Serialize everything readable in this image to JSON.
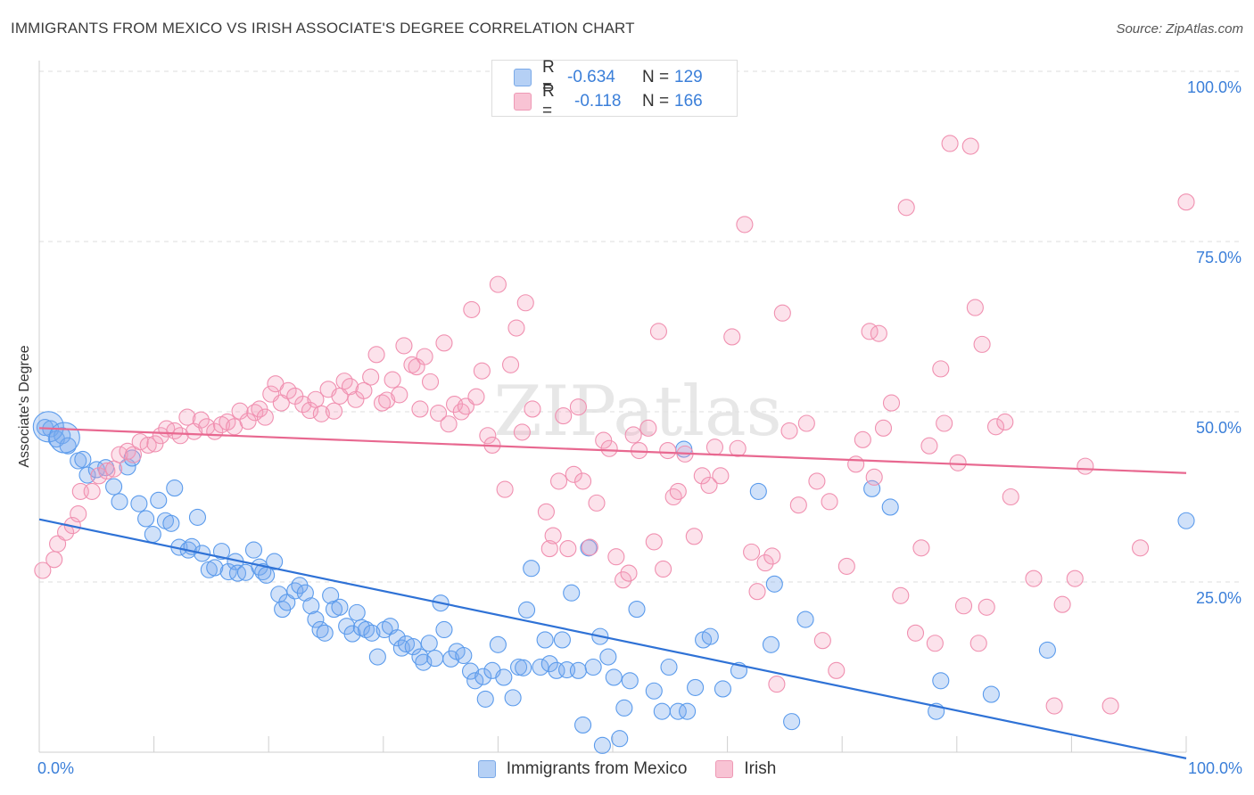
{
  "header": {
    "title": "IMMIGRANTS FROM MEXICO VS IRISH ASSOCIATE'S DEGREE CORRELATION CHART",
    "source": "Source: ZipAtlas.com"
  },
  "colors": {
    "blue": "#5b9bec",
    "blue_line": "#2f72d6",
    "pink": "#f090b0",
    "pink_line": "#e86890",
    "axis_text": "#3b7fd9"
  },
  "legend_top": {
    "rows": [
      {
        "r_label": "R =",
        "r_value": "-0.634",
        "n_label": "N =",
        "n_value": "129"
      },
      {
        "r_label": "R =",
        "r_value": "-0.118",
        "n_label": "N =",
        "n_value": "166"
      }
    ]
  },
  "legend_bottom": {
    "items": [
      "Immigrants from Mexico",
      "Irish"
    ]
  },
  "chart_data": {
    "type": "scatter",
    "ylabel": "Associate's Degree",
    "xlim": [
      0,
      100
    ],
    "ylim": [
      0,
      100
    ],
    "x_tick_labels": [
      "0.0%",
      "100.0%"
    ],
    "y_tick_labels": [
      "25.0%",
      "50.0%",
      "75.0%",
      "100.0%"
    ],
    "y_ticks": [
      25,
      50,
      75,
      100
    ],
    "grid": true,
    "watermark": "ZIPatlas",
    "series": [
      {
        "name": "Immigrants from Mexico",
        "trend": {
          "x": [
            0,
            100
          ],
          "y": [
            34.2,
            -0.9
          ]
        },
        "points": [
          [
            0.5,
            47.7
          ],
          [
            1,
            47.5
          ],
          [
            1.5,
            46
          ],
          [
            2,
            46.5
          ],
          [
            2.5,
            45
          ],
          [
            3.4,
            42.8
          ],
          [
            3.8,
            43
          ],
          [
            4.2,
            40.7
          ],
          [
            5,
            41.5
          ],
          [
            5.8,
            41.8
          ],
          [
            6.5,
            39
          ],
          [
            7,
            36.8
          ],
          [
            7.7,
            41.9
          ],
          [
            8.1,
            43.2
          ],
          [
            8.7,
            36.5
          ],
          [
            9.3,
            34.3
          ],
          [
            9.9,
            32
          ],
          [
            10.4,
            37
          ],
          [
            11,
            34
          ],
          [
            11.5,
            33.6
          ],
          [
            11.8,
            38.8
          ],
          [
            12.2,
            30.1
          ],
          [
            13,
            29.7
          ],
          [
            13.3,
            30.2
          ],
          [
            13.8,
            34.5
          ],
          [
            14.2,
            29.2
          ],
          [
            14.8,
            26.8
          ],
          [
            15.3,
            27.1
          ],
          [
            15.9,
            29.5
          ],
          [
            16.5,
            26.5
          ],
          [
            17.1,
            28
          ],
          [
            17.3,
            26.3
          ],
          [
            18,
            26.4
          ],
          [
            18.7,
            29.7
          ],
          [
            19.2,
            27.2
          ],
          [
            19.5,
            26.5
          ],
          [
            19.8,
            26
          ],
          [
            20.5,
            28
          ],
          [
            20.9,
            23.2
          ],
          [
            21.2,
            21
          ],
          [
            21.6,
            22
          ],
          [
            22.3,
            23.7
          ],
          [
            22.7,
            24.5
          ],
          [
            23.2,
            23.4
          ],
          [
            23.7,
            21.5
          ],
          [
            24.1,
            19.5
          ],
          [
            24.5,
            18
          ],
          [
            24.9,
            17.5
          ],
          [
            25.4,
            23
          ],
          [
            25.7,
            21
          ],
          [
            26.2,
            21.3
          ],
          [
            26.8,
            18.5
          ],
          [
            27.3,
            17.4
          ],
          [
            27.7,
            20.5
          ],
          [
            28.1,
            18.3
          ],
          [
            28.5,
            18
          ],
          [
            29,
            17.5
          ],
          [
            29.5,
            14
          ],
          [
            30.1,
            18
          ],
          [
            30.6,
            18.5
          ],
          [
            31.2,
            16.8
          ],
          [
            31.6,
            15.3
          ],
          [
            32,
            15.9
          ],
          [
            32.6,
            15.5
          ],
          [
            33.2,
            14
          ],
          [
            33.5,
            13.2
          ],
          [
            34,
            16
          ],
          [
            34.5,
            13.8
          ],
          [
            35,
            21.9
          ],
          [
            35.3,
            18
          ],
          [
            35.9,
            13.7
          ],
          [
            36.4,
            14.8
          ],
          [
            37,
            14.2
          ],
          [
            37.6,
            11.9
          ],
          [
            38,
            10.5
          ],
          [
            38.7,
            11.1
          ],
          [
            38.9,
            7.8
          ],
          [
            39.5,
            12
          ],
          [
            40,
            15.8
          ],
          [
            40.5,
            11
          ],
          [
            41.3,
            8
          ],
          [
            41.8,
            12.5
          ],
          [
            42.2,
            12.4
          ],
          [
            42.5,
            20.9
          ],
          [
            42.9,
            27
          ],
          [
            43.7,
            12.5
          ],
          [
            44.1,
            16.5
          ],
          [
            44.5,
            13
          ],
          [
            45.1,
            12
          ],
          [
            45.6,
            16.5
          ],
          [
            46,
            12.1
          ],
          [
            46.4,
            23.4
          ],
          [
            47,
            12
          ],
          [
            47.4,
            4
          ],
          [
            47.9,
            30
          ],
          [
            48.3,
            12.5
          ],
          [
            48.9,
            17
          ],
          [
            49.1,
            1
          ],
          [
            49.6,
            14
          ],
          [
            50.1,
            11
          ],
          [
            50.6,
            2
          ],
          [
            51,
            6.5
          ],
          [
            51.5,
            10.5
          ],
          [
            52.1,
            21
          ],
          [
            53.6,
            9
          ],
          [
            54.3,
            6
          ],
          [
            54.9,
            12.5
          ],
          [
            55.7,
            6
          ],
          [
            56.2,
            44.5
          ],
          [
            56.5,
            6
          ],
          [
            57.2,
            9.5
          ],
          [
            57.9,
            16.5
          ],
          [
            58.5,
            17
          ],
          [
            59.6,
            9.3
          ],
          [
            61,
            12
          ],
          [
            62.7,
            38.3
          ],
          [
            63.8,
            15.8
          ],
          [
            64.1,
            24.7
          ],
          [
            65.6,
            4.5
          ],
          [
            66.8,
            19.5
          ],
          [
            72.6,
            38.7
          ],
          [
            74.2,
            36
          ],
          [
            78.2,
            6
          ],
          [
            78.6,
            10.5
          ],
          [
            83,
            8.5
          ],
          [
            87.9,
            15
          ],
          [
            100,
            34
          ]
        ],
        "large_points": [
          [
            0.8,
            47.8
          ],
          [
            2.2,
            46.2
          ]
        ]
      },
      {
        "name": "Irish",
        "trend": {
          "x": [
            0,
            100
          ],
          "y": [
            47.6,
            41.0
          ]
        },
        "points": [
          [
            0.3,
            26.7
          ],
          [
            1.3,
            28.3
          ],
          [
            1.6,
            30.6
          ],
          [
            2.3,
            32.3
          ],
          [
            2.9,
            33.3
          ],
          [
            3.4,
            35
          ],
          [
            3.6,
            38.3
          ],
          [
            4.6,
            38.3
          ],
          [
            5.2,
            40.6
          ],
          [
            5.9,
            41.3
          ],
          [
            6.5,
            41.6
          ],
          [
            7,
            43.7
          ],
          [
            7.7,
            44.2
          ],
          [
            8.2,
            43.7
          ],
          [
            8.8,
            45.6
          ],
          [
            9.5,
            45.1
          ],
          [
            10.1,
            45.3
          ],
          [
            10.6,
            46.5
          ],
          [
            11.1,
            47.5
          ],
          [
            11.8,
            47.2
          ],
          [
            12.3,
            46.5
          ],
          [
            12.9,
            49.2
          ],
          [
            13.5,
            47.1
          ],
          [
            14.1,
            48.8
          ],
          [
            14.6,
            47.8
          ],
          [
            15.3,
            47.1
          ],
          [
            15.9,
            48.1
          ],
          [
            16.4,
            48.5
          ],
          [
            17,
            47.8
          ],
          [
            17.5,
            50.1
          ],
          [
            18.2,
            48.6
          ],
          [
            18.8,
            49.9
          ],
          [
            19.2,
            50.4
          ],
          [
            19.7,
            49.2
          ],
          [
            20.2,
            52.6
          ],
          [
            20.6,
            54.1
          ],
          [
            21.1,
            51.3
          ],
          [
            21.7,
            53.1
          ],
          [
            22.3,
            52.3
          ],
          [
            23,
            51.1
          ],
          [
            23.6,
            50.2
          ],
          [
            24.1,
            51.8
          ],
          [
            24.6,
            49.7
          ],
          [
            25.2,
            53.3
          ],
          [
            25.7,
            50.1
          ],
          [
            26.2,
            52.3
          ],
          [
            26.6,
            54.5
          ],
          [
            27.1,
            53.7
          ],
          [
            27.6,
            51.8
          ],
          [
            28.3,
            53.1
          ],
          [
            28.9,
            55.1
          ],
          [
            29.4,
            58.4
          ],
          [
            29.9,
            51.3
          ],
          [
            30.3,
            51.7
          ],
          [
            30.8,
            54.7
          ],
          [
            31.4,
            52.5
          ],
          [
            31.8,
            59.7
          ],
          [
            32.5,
            56.9
          ],
          [
            32.9,
            56.6
          ],
          [
            33.2,
            50.4
          ],
          [
            33.6,
            58.1
          ],
          [
            34.1,
            54.4
          ],
          [
            34.8,
            49.8
          ],
          [
            35.3,
            60.1
          ],
          [
            35.7,
            48.2
          ],
          [
            36.2,
            51.1
          ],
          [
            36.8,
            50
          ],
          [
            37.2,
            50.8
          ],
          [
            37.7,
            65
          ],
          [
            38.1,
            52.2
          ],
          [
            38.6,
            56
          ],
          [
            39.1,
            46.5
          ],
          [
            39.5,
            45.1
          ],
          [
            40,
            68.7
          ],
          [
            40.6,
            38.6
          ],
          [
            41.1,
            56.9
          ],
          [
            41.6,
            62.3
          ],
          [
            42.1,
            47
          ],
          [
            42.4,
            66
          ],
          [
            43,
            50.4
          ],
          [
            44.2,
            35.3
          ],
          [
            44.5,
            29.9
          ],
          [
            44.8,
            31.8
          ],
          [
            45.3,
            39.8
          ],
          [
            45.7,
            49.4
          ],
          [
            46.1,
            29.9
          ],
          [
            46.6,
            40.8
          ],
          [
            47,
            50.7
          ],
          [
            47.4,
            39.8
          ],
          [
            48,
            30.1
          ],
          [
            48.6,
            36.6
          ],
          [
            49.2,
            45.8
          ],
          [
            49.7,
            44.6
          ],
          [
            50.3,
            28.7
          ],
          [
            50.9,
            25.3
          ],
          [
            51.4,
            26.3
          ],
          [
            51.8,
            46.6
          ],
          [
            52.3,
            44.3
          ],
          [
            53.1,
            47.6
          ],
          [
            53.6,
            30.9
          ],
          [
            54,
            61.8
          ],
          [
            54.4,
            26.9
          ],
          [
            54.8,
            44.3
          ],
          [
            55.3,
            37.5
          ],
          [
            55.7,
            38.3
          ],
          [
            56.3,
            43.8
          ],
          [
            57.1,
            31.7
          ],
          [
            57.8,
            40.6
          ],
          [
            58.4,
            39.2
          ],
          [
            58.9,
            44.8
          ],
          [
            59.4,
            40.6
          ],
          [
            60.4,
            61
          ],
          [
            60.9,
            44.6
          ],
          [
            61.5,
            77.5
          ],
          [
            62.1,
            29.4
          ],
          [
            62.6,
            23.6
          ],
          [
            63.3,
            27.8
          ],
          [
            63.9,
            28.8
          ],
          [
            64.3,
            10
          ],
          [
            64.8,
            64.5
          ],
          [
            65.4,
            47.2
          ],
          [
            66.2,
            36.3
          ],
          [
            66.9,
            48.3
          ],
          [
            67.8,
            39.8
          ],
          [
            68.3,
            16.4
          ],
          [
            68.9,
            36.8
          ],
          [
            69.5,
            12
          ],
          [
            70.4,
            27.3
          ],
          [
            71.2,
            42.3
          ],
          [
            71.8,
            45.9
          ],
          [
            72.4,
            61.8
          ],
          [
            72.8,
            40.4
          ],
          [
            73.2,
            61.5
          ],
          [
            73.6,
            47.6
          ],
          [
            74.3,
            51.3
          ],
          [
            75.1,
            23
          ],
          [
            75.6,
            80
          ],
          [
            76.4,
            17.5
          ],
          [
            76.9,
            30
          ],
          [
            77.6,
            45
          ],
          [
            78.1,
            16
          ],
          [
            78.6,
            56.3
          ],
          [
            78.9,
            48.3
          ],
          [
            79.4,
            89.4
          ],
          [
            80.1,
            42.5
          ],
          [
            80.6,
            21.5
          ],
          [
            81.2,
            89
          ],
          [
            81.6,
            65.3
          ],
          [
            81.9,
            16
          ],
          [
            82.2,
            59.9
          ],
          [
            82.6,
            21.3
          ],
          [
            83.4,
            47.8
          ],
          [
            84.2,
            48.5
          ],
          [
            84.7,
            37.5
          ],
          [
            86.7,
            25.5
          ],
          [
            88.5,
            6.8
          ],
          [
            89.2,
            21.7
          ],
          [
            90.3,
            25.5
          ],
          [
            91.2,
            42
          ],
          [
            93.4,
            6.8
          ],
          [
            96,
            30
          ],
          [
            100,
            80.8
          ]
        ],
        "large_points": []
      }
    ]
  }
}
